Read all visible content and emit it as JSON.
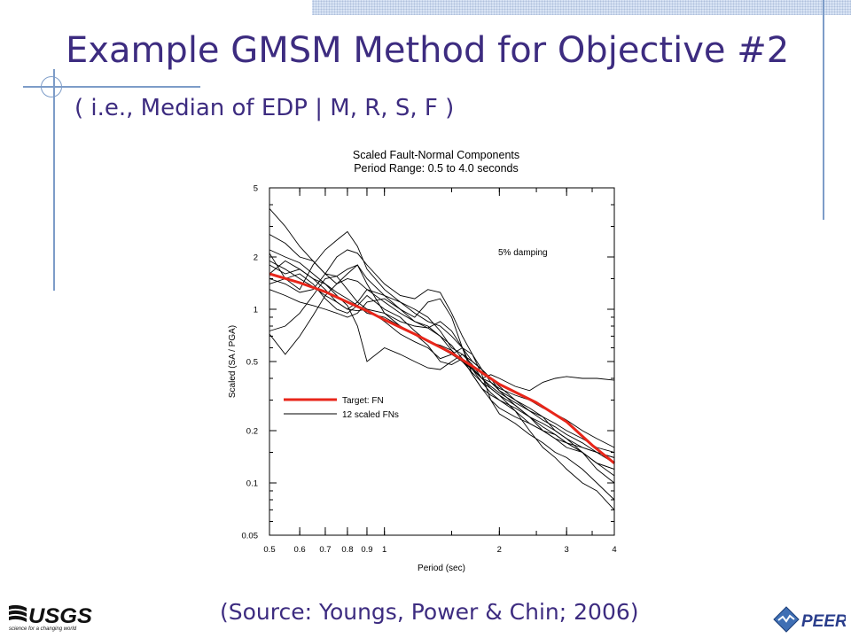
{
  "slide": {
    "title": "Example GMSM Method for Objective #2",
    "subtitle": "( i.e., Median of EDP | M, R, S, F )",
    "source": "(Source: Youngs, Power & Chin; 2006)",
    "logos": {
      "left": "USGS",
      "left_tagline": "science for a changing world",
      "right": "PEER"
    },
    "colors": {
      "text": "#3d2c80",
      "accent_line": "#7d9cc8",
      "target": "#e8261a"
    }
  },
  "chart_data": {
    "type": "line",
    "title_lines": [
      "Scaled Fault-Normal Components",
      "Period Range: 0.5 to 4.0 seconds"
    ],
    "xlabel": "Period (sec)",
    "ylabel": "Scaled (SA / PGA)",
    "x_scale": "log",
    "y_scale": "log",
    "xlim": [
      0.5,
      4
    ],
    "ylim": [
      0.05,
      5
    ],
    "x_ticks": [
      0.5,
      0.6,
      0.7,
      0.8,
      0.9,
      1,
      2,
      3,
      4
    ],
    "x_tick_labels": [
      "0.5",
      "0.6",
      "0.7",
      "0.8",
      "0.9",
      "1",
      "2",
      "3",
      "4"
    ],
    "y_ticks": [
      0.05,
      0.1,
      0.2,
      0.5,
      1,
      2,
      5
    ],
    "y_tick_labels": [
      "0.05",
      "0.1",
      "0.2",
      "0.5",
      "1",
      "2",
      "5"
    ],
    "annotation": "5% damping",
    "legend": {
      "position": "middle-left",
      "entries": [
        "Target: FN",
        "12 scaled FNs"
      ]
    },
    "target": {
      "name": "Target: FN",
      "color": "#e8261a",
      "x": [
        0.5,
        0.6,
        0.7,
        0.8,
        0.9,
        1.0,
        1.2,
        1.5,
        1.7,
        2.0,
        2.5,
        3.0,
        3.5,
        4.0
      ],
      "y": [
        1.6,
        1.42,
        1.26,
        1.1,
        0.98,
        0.87,
        0.72,
        0.56,
        0.47,
        0.37,
        0.29,
        0.225,
        0.165,
        0.13
      ]
    },
    "series_x": [
      0.5,
      0.55,
      0.6,
      0.65,
      0.7,
      0.75,
      0.8,
      0.85,
      0.9,
      1.0,
      1.1,
      1.2,
      1.3,
      1.4,
      1.5,
      1.6,
      1.7,
      1.8,
      1.9,
      2.0,
      2.2,
      2.4,
      2.6,
      2.8,
      3.0,
      3.3,
      3.6,
      4.0
    ],
    "series": [
      {
        "values": [
          3.8,
          3.0,
          2.3,
          1.9,
          1.6,
          1.4,
          1.6,
          1.8,
          1.4,
          0.95,
          0.8,
          0.72,
          0.62,
          0.5,
          0.48,
          0.52,
          0.45,
          0.38,
          0.35,
          0.32,
          0.28,
          0.24,
          0.2,
          0.18,
          0.16,
          0.15,
          0.13,
          0.12
        ]
      },
      {
        "values": [
          2.7,
          2.4,
          2.0,
          1.9,
          1.6,
          1.55,
          1.7,
          1.8,
          1.5,
          1.2,
          1.1,
          1.0,
          0.9,
          0.75,
          0.6,
          0.55,
          0.5,
          0.45,
          0.4,
          0.34,
          0.3,
          0.26,
          0.24,
          0.22,
          0.2,
          0.18,
          0.16,
          0.15
        ]
      },
      {
        "values": [
          2.1,
          1.5,
          1.3,
          1.8,
          2.2,
          2.5,
          2.8,
          2.3,
          1.7,
          1.3,
          1.1,
          0.95,
          0.85,
          0.8,
          0.7,
          0.6,
          0.5,
          0.45,
          0.4,
          0.36,
          0.3,
          0.27,
          0.24,
          0.2,
          0.18,
          0.15,
          0.12,
          0.1
        ]
      },
      {
        "values": [
          1.8,
          1.6,
          1.7,
          1.5,
          1.3,
          1.1,
          1.0,
          1.1,
          1.3,
          1.2,
          1.0,
          0.85,
          0.78,
          0.85,
          0.75,
          0.6,
          0.45,
          0.4,
          0.42,
          0.4,
          0.36,
          0.34,
          0.38,
          0.4,
          0.41,
          0.4,
          0.4,
          0.39
        ]
      },
      {
        "values": [
          1.5,
          1.4,
          1.25,
          1.3,
          1.6,
          2.0,
          2.2,
          2.1,
          1.8,
          1.4,
          1.2,
          1.15,
          1.3,
          1.25,
          0.95,
          0.7,
          0.55,
          0.42,
          0.3,
          0.25,
          0.22,
          0.19,
          0.17,
          0.15,
          0.14,
          0.12,
          0.1,
          0.08
        ]
      },
      {
        "values": [
          1.3,
          1.2,
          1.1,
          1.05,
          1.0,
          0.95,
          0.9,
          0.95,
          1.1,
          1.15,
          1.0,
          0.9,
          1.1,
          1.15,
          0.9,
          0.6,
          0.42,
          0.35,
          0.32,
          0.3,
          0.26,
          0.22,
          0.2,
          0.18,
          0.17,
          0.15,
          0.13,
          0.11
        ]
      },
      {
        "values": [
          0.75,
          0.8,
          0.95,
          1.2,
          1.5,
          1.55,
          1.3,
          1.1,
          1.0,
          0.85,
          0.72,
          0.65,
          0.6,
          0.52,
          0.55,
          0.6,
          0.55,
          0.45,
          0.38,
          0.34,
          0.28,
          0.24,
          0.22,
          0.2,
          0.18,
          0.16,
          0.15,
          0.13
        ]
      },
      {
        "values": [
          0.72,
          0.55,
          0.7,
          0.92,
          1.2,
          1.4,
          1.5,
          1.45,
          1.3,
          1.1,
          0.95,
          0.85,
          0.8,
          0.7,
          0.58,
          0.5,
          0.45,
          0.4,
          0.38,
          0.35,
          0.32,
          0.3,
          0.27,
          0.25,
          0.23,
          0.2,
          0.18,
          0.16
        ]
      },
      {
        "values": [
          1.6,
          1.9,
          1.7,
          1.5,
          1.4,
          1.2,
          1.05,
          0.8,
          0.5,
          0.6,
          0.55,
          0.5,
          0.46,
          0.45,
          0.5,
          0.55,
          0.48,
          0.4,
          0.35,
          0.32,
          0.26,
          0.2,
          0.16,
          0.14,
          0.12,
          0.1,
          0.09,
          0.07
        ]
      },
      {
        "values": [
          2.2,
          2.0,
          1.85,
          1.6,
          1.4,
          1.25,
          1.15,
          1.05,
          0.95,
          0.9,
          0.8,
          0.72,
          0.65,
          0.6,
          0.55,
          0.5,
          0.46,
          0.4,
          0.36,
          0.33,
          0.29,
          0.26,
          0.23,
          0.21,
          0.19,
          0.17,
          0.15,
          0.14
        ]
      },
      {
        "values": [
          1.9,
          1.7,
          1.5,
          1.35,
          1.2,
          1.1,
          1.0,
          0.98,
          1.0,
          0.95,
          0.85,
          0.8,
          0.78,
          0.7,
          0.62,
          0.52,
          0.42,
          0.35,
          0.3,
          0.27,
          0.24,
          0.22,
          0.2,
          0.19,
          0.17,
          0.16,
          0.15,
          0.14
        ]
      },
      {
        "values": [
          1.4,
          1.5,
          1.6,
          1.4,
          1.15,
          1.0,
          0.95,
          1.05,
          1.2,
          1.0,
          0.9,
          0.75,
          0.65,
          0.62,
          0.58,
          0.5,
          0.43,
          0.38,
          0.33,
          0.3,
          0.27,
          0.24,
          0.21,
          0.19,
          0.17,
          0.15,
          0.13,
          0.12
        ]
      }
    ]
  }
}
